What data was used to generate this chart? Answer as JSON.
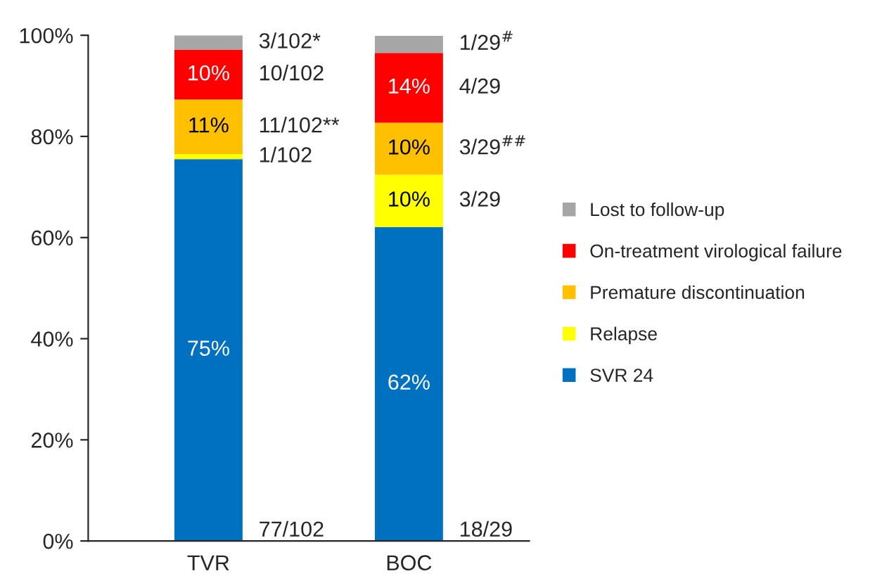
{
  "chart_data": {
    "type": "bar",
    "stacked": true,
    "categories": [
      "TVR",
      "BOC"
    ],
    "series": [
      {
        "name": "SVR 24",
        "color": "#0070c0",
        "values": [
          75.5,
          62.1
        ],
        "value_labels": [
          "75%",
          "62%"
        ]
      },
      {
        "name": "Relapse",
        "color": "#ffff00",
        "values": [
          1.0,
          10.3
        ],
        "value_labels": [
          null,
          "10%"
        ]
      },
      {
        "name": "Premature discontinuation",
        "color": "#ffc000",
        "values": [
          10.8,
          10.3
        ],
        "value_labels": [
          "11%",
          "10%"
        ]
      },
      {
        "name": "On-treatment virological failure",
        "color": "#ff0000",
        "values": [
          9.8,
          13.8
        ],
        "value_labels": [
          "10%",
          "14%"
        ]
      },
      {
        "name": "Lost to follow-up",
        "color": "#a6a6a6",
        "values": [
          2.9,
          3.4
        ],
        "value_labels": [
          null,
          null
        ]
      }
    ],
    "ylim": [
      0,
      100
    ],
    "yticks": [
      {
        "value": 0,
        "label": "0%"
      },
      {
        "value": 20,
        "label": "20%"
      },
      {
        "value": 40,
        "label": "40%"
      },
      {
        "value": 60,
        "label": "60%"
      },
      {
        "value": 80,
        "label": "80%"
      },
      {
        "value": 100,
        "label": "100%"
      }
    ],
    "grid": false,
    "legend": "right",
    "annotations": [
      "3/102*",
      "10/102",
      "11/102**",
      "1/102",
      "77/102",
      "1/29$^{#}$",
      "4/29",
      "3/29$^{##}$",
      "3/29",
      "18/29"
    ]
  }
}
